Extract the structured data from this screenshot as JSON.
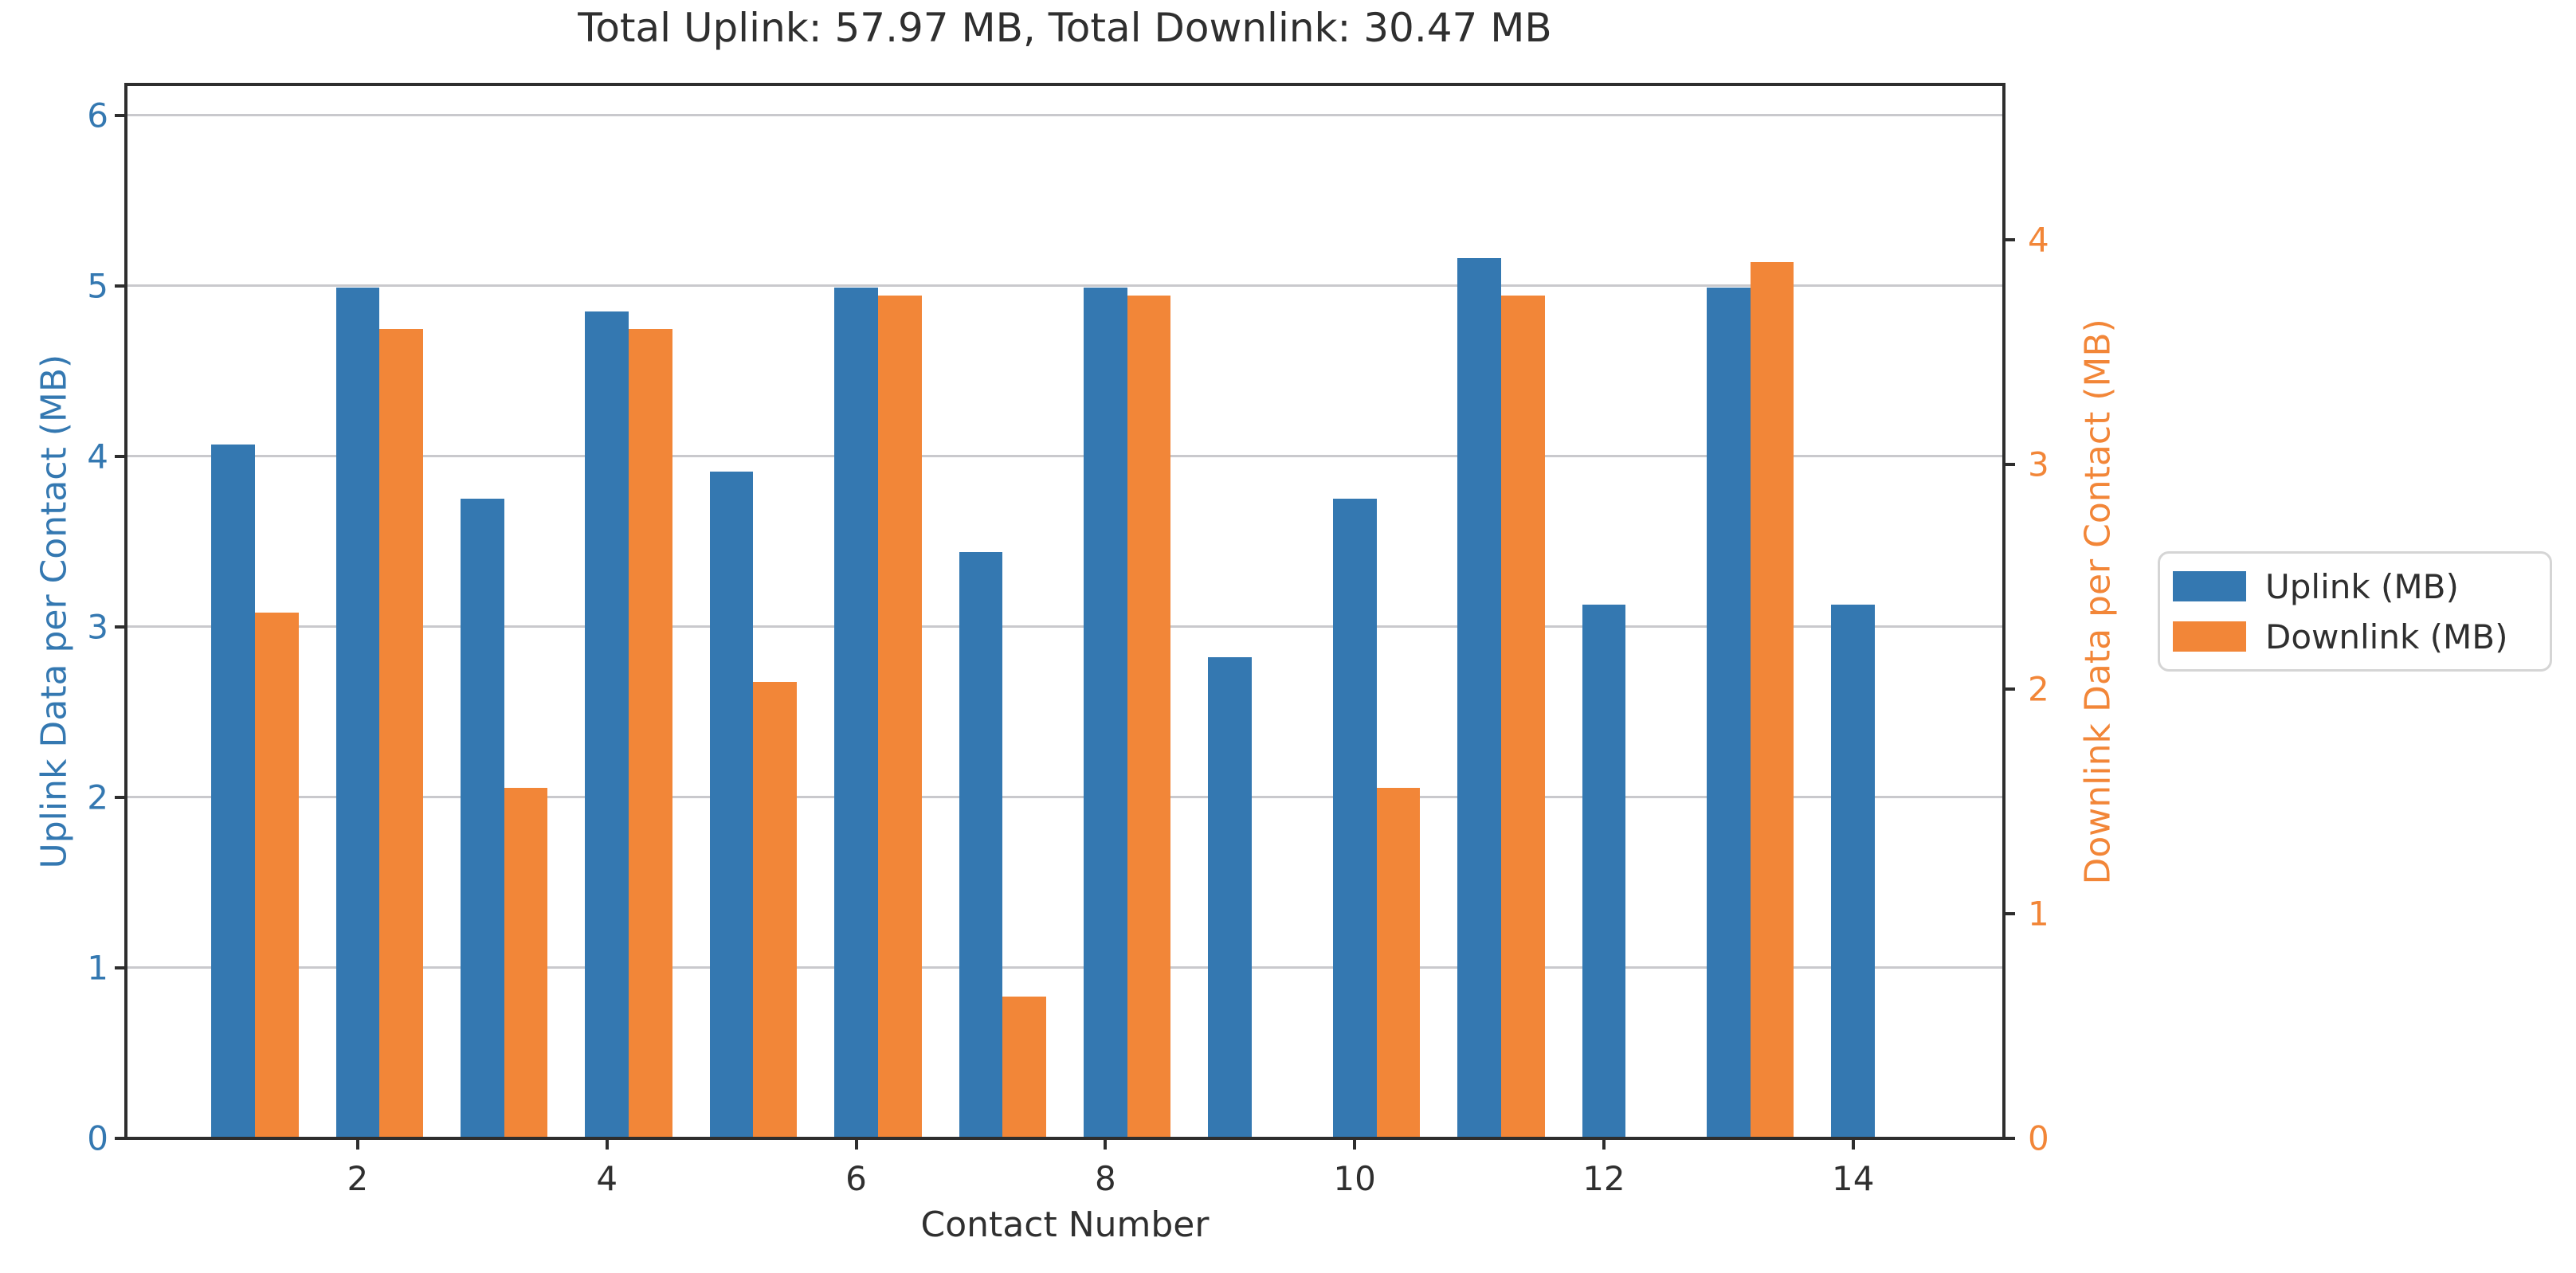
{
  "title": "Total Uplink: 57.97 MB, Total Downlink: 30.47 MB",
  "x_axis": {
    "label": "Contact Number",
    "ticks": [
      2,
      4,
      6,
      8,
      10,
      12,
      14
    ]
  },
  "y_axis_left": {
    "label": "Uplink Data per Contact (MB)",
    "ticks": [
      0,
      1,
      2,
      3,
      4,
      5,
      6
    ],
    "color": "#3478B1"
  },
  "y_axis_right": {
    "label": "Downlink Data per Contact (MB)",
    "ticks": [
      0,
      1,
      2,
      3,
      4
    ],
    "color": "#F28638"
  },
  "legend": {
    "entries": [
      {
        "label": "Uplink (MB)",
        "color": "#3478B1"
      },
      {
        "label": "Downlink (MB)",
        "color": "#F28638"
      }
    ]
  },
  "colors": {
    "uplink": "#3478B1",
    "downlink": "#F28638",
    "axis": "#2e2e2e",
    "grid": "#c9c9cd"
  },
  "chart_data": {
    "type": "bar",
    "title": "Total Uplink: 57.97 MB, Total Downlink: 30.47 MB",
    "xlabel": "Contact Number",
    "ylabel_left": "Uplink Data per Contact (MB)",
    "ylabel_right": "Downlink Data per Contact (MB)",
    "categories": [
      1,
      2,
      3,
      4,
      5,
      6,
      7,
      8,
      9,
      10,
      11,
      12,
      13,
      14
    ],
    "series": [
      {
        "name": "Uplink (MB)",
        "axis": "left",
        "color": "#3478B1",
        "values": [
          4.07,
          4.99,
          3.75,
          4.85,
          3.91,
          4.99,
          3.44,
          4.99,
          2.82,
          3.75,
          5.16,
          3.13,
          4.99,
          3.13
        ]
      },
      {
        "name": "Downlink (MB)",
        "axis": "right",
        "color": "#F28638",
        "values": [
          2.34,
          3.6,
          1.56,
          3.6,
          2.03,
          3.75,
          0.63,
          3.75,
          0,
          1.56,
          3.75,
          0,
          3.9,
          0
        ]
      }
    ],
    "totals": {
      "uplink_mb": 57.97,
      "downlink_mb": 30.47
    },
    "left_ylim": [
      0,
      6.18
    ],
    "right_ylim": [
      0,
      4.69
    ],
    "xlim": [
      0.14,
      15.21
    ],
    "bar_width": 0.35,
    "grid": "horizontal",
    "legend_position": "right"
  }
}
